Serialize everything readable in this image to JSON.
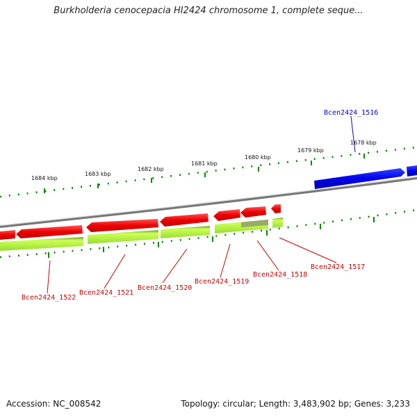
{
  "title": "Burkholderia cenocepacia HI2424 chromosome 1, complete seque...",
  "footer": {
    "accession": "Accession: NC_008542",
    "summary": "Topology: circular; Length: 3,483,902 bp; Genes: 3,233"
  },
  "colors": {
    "forward_gene": "#0000ee",
    "reverse_gene": "#ee0000",
    "cds_bar": "#bbff44",
    "backbone": "#888888",
    "tick": "#008800",
    "forward_label": "#0000cc",
    "reverse_label": "#cc0000"
  },
  "scale_labels": [
    "1684 kbp",
    "1683 kbp",
    "1682 kbp",
    "1681 kbp",
    "1680 kbp",
    "1679 kbp",
    "1678 kbp"
  ],
  "gene_labels": {
    "g1516": "Bcen2424_1516",
    "g1517": "Bcen2424_1517",
    "g1518": "Bcen2424_1518",
    "g1519": "Bcen2424_1519",
    "g1520": "Bcen2424_1520",
    "g1521": "Bcen2424_1521",
    "g1522": "Bcen2424_1522"
  }
}
